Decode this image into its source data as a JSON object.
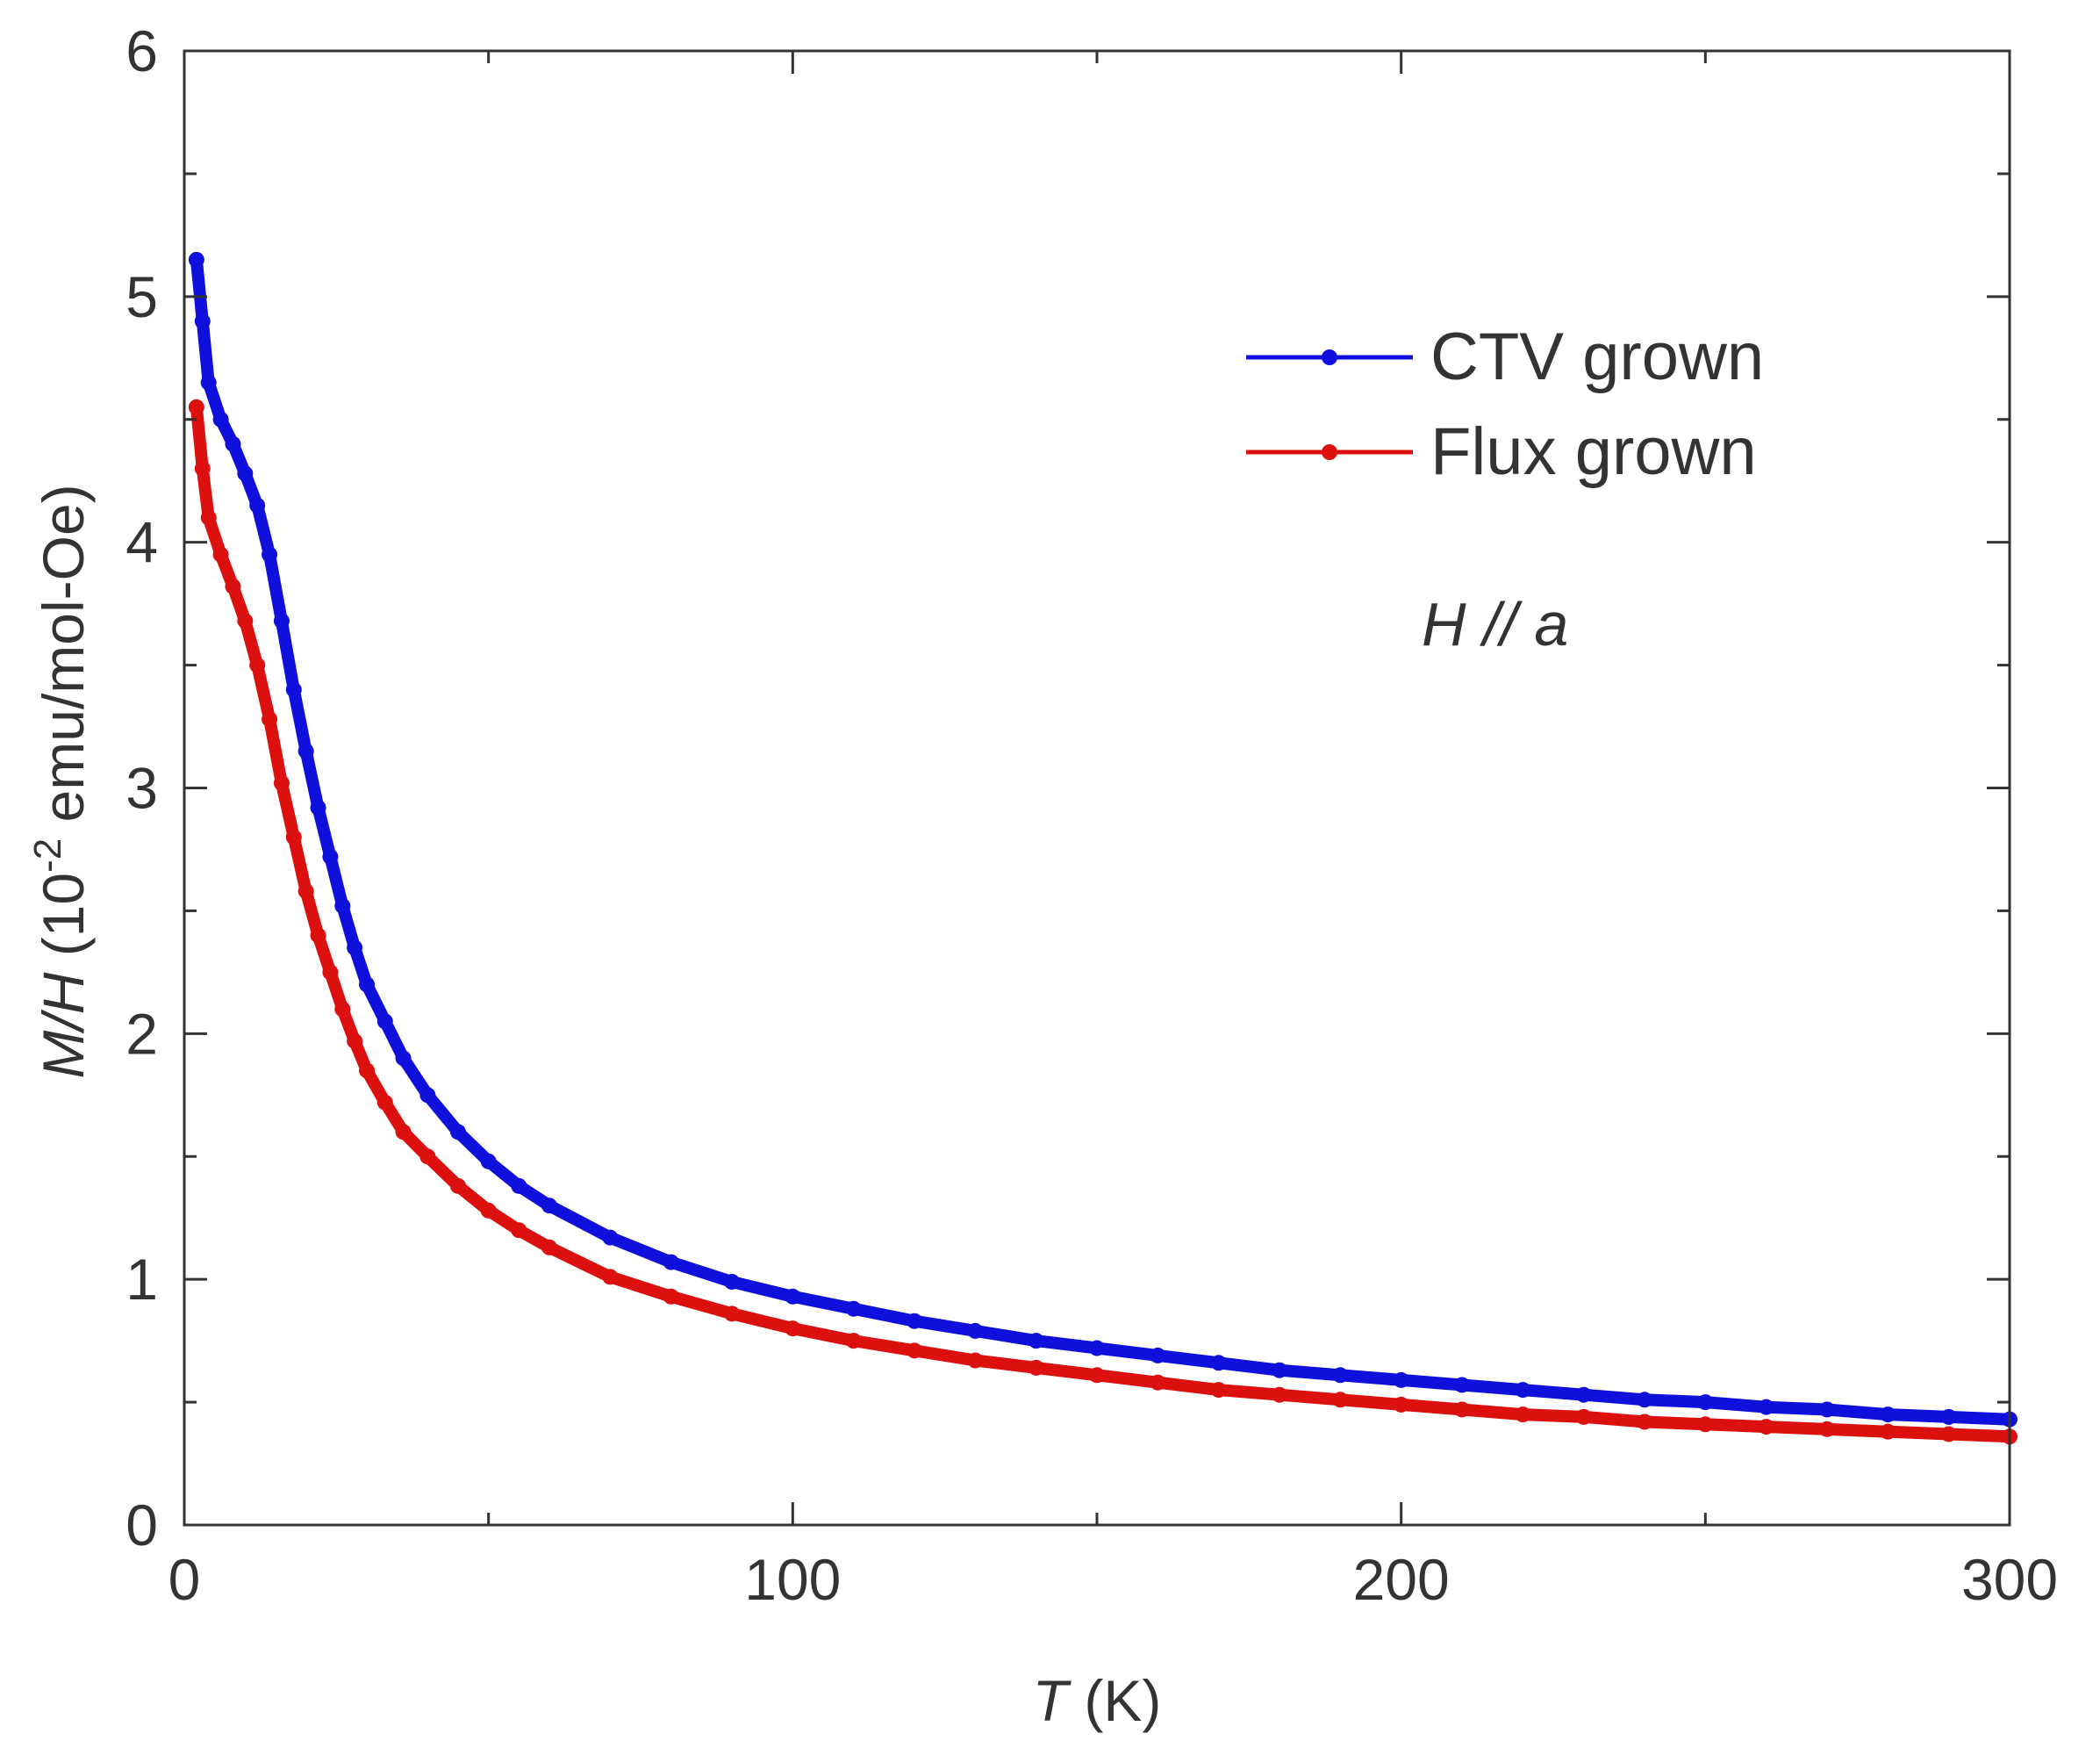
{
  "chart_data": {
    "type": "scatter",
    "title": "",
    "xlabel": {
      "symbol": "T",
      "unit": " (K)"
    },
    "ylabel": {
      "symbol": "M/H",
      "prefix": " (10",
      "exponent": "-2",
      "suffix": " emu/mol-Oe)"
    },
    "xlim": [
      0,
      300
    ],
    "ylim": [
      0,
      6
    ],
    "x_ticks": [
      0,
      100,
      200,
      300
    ],
    "y_ticks": [
      0,
      1,
      2,
      3,
      4,
      5,
      6
    ],
    "grid": false,
    "legend_position": "top-right",
    "annotation": "H // a",
    "series": [
      {
        "name": "CTV grown",
        "color": "#1010dd",
        "x": [
          2,
          3,
          4,
          6,
          8,
          10,
          12,
          14,
          16,
          18,
          20,
          22,
          24,
          26,
          28,
          30,
          33,
          36,
          40,
          45,
          50,
          55,
          60,
          70,
          80,
          90,
          100,
          110,
          120,
          130,
          140,
          150,
          160,
          170,
          180,
          190,
          200,
          210,
          220,
          230,
          240,
          250,
          260,
          270,
          280,
          290,
          300
        ],
        "y": [
          5.15,
          4.9,
          4.65,
          4.5,
          4.4,
          4.28,
          4.15,
          3.95,
          3.68,
          3.4,
          3.15,
          2.92,
          2.72,
          2.52,
          2.35,
          2.2,
          2.05,
          1.9,
          1.75,
          1.6,
          1.48,
          1.38,
          1.3,
          1.17,
          1.07,
          0.99,
          0.93,
          0.88,
          0.83,
          0.79,
          0.75,
          0.72,
          0.69,
          0.66,
          0.63,
          0.61,
          0.59,
          0.57,
          0.55,
          0.53,
          0.51,
          0.5,
          0.48,
          0.47,
          0.45,
          0.44,
          0.43
        ]
      },
      {
        "name": "Flux grown",
        "color": "#dd1010",
        "x": [
          2,
          3,
          4,
          6,
          8,
          10,
          12,
          14,
          16,
          18,
          20,
          22,
          24,
          26,
          28,
          30,
          33,
          36,
          40,
          45,
          50,
          55,
          60,
          70,
          80,
          90,
          100,
          110,
          120,
          130,
          140,
          150,
          160,
          170,
          180,
          190,
          200,
          210,
          220,
          230,
          240,
          250,
          260,
          270,
          280,
          290,
          300
        ],
        "y": [
          4.55,
          4.3,
          4.1,
          3.95,
          3.82,
          3.68,
          3.5,
          3.28,
          3.02,
          2.8,
          2.58,
          2.4,
          2.25,
          2.1,
          1.97,
          1.85,
          1.72,
          1.6,
          1.5,
          1.38,
          1.28,
          1.2,
          1.13,
          1.01,
          0.93,
          0.86,
          0.8,
          0.75,
          0.71,
          0.67,
          0.64,
          0.61,
          0.58,
          0.55,
          0.53,
          0.51,
          0.49,
          0.47,
          0.45,
          0.44,
          0.42,
          0.41,
          0.4,
          0.39,
          0.38,
          0.37,
          0.36
        ]
      }
    ]
  }
}
